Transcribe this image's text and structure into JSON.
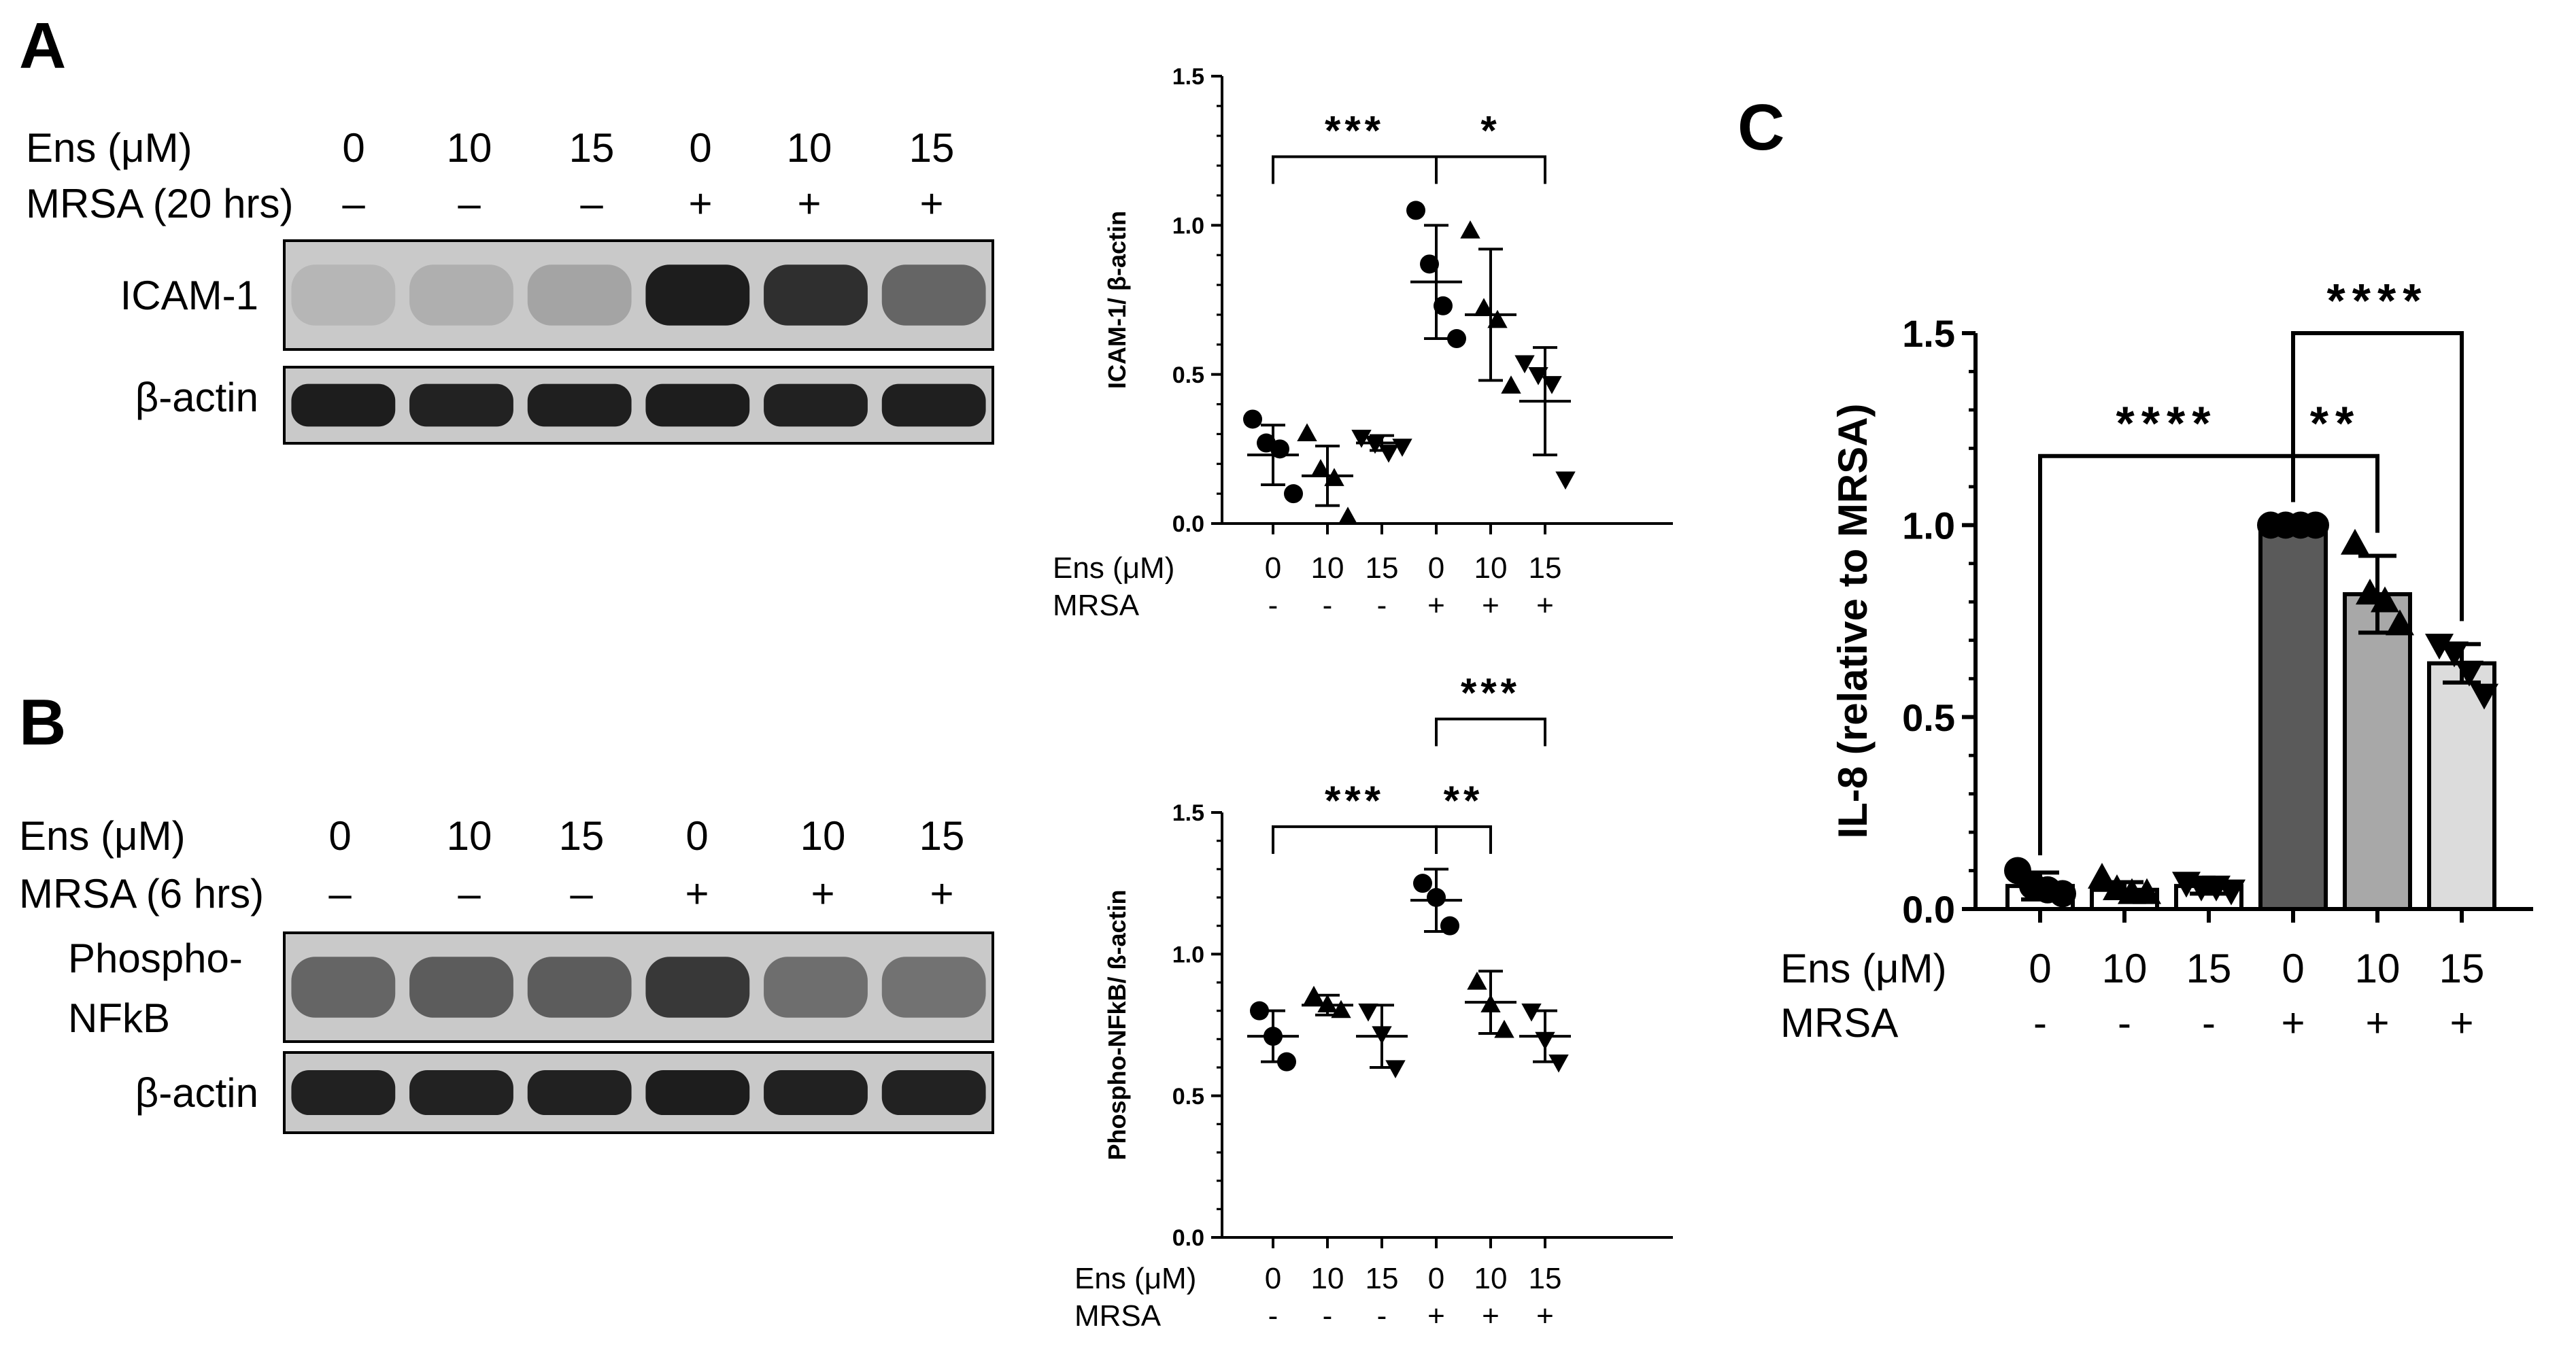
{
  "panels": {
    "A": {
      "letter": "A",
      "rows": [
        {
          "label": "Ens (μM)",
          "values": [
            "0",
            "10",
            "15",
            "0",
            "10",
            "15"
          ]
        },
        {
          "label": "MRSA (20 hrs)",
          "values": [
            "–",
            "–",
            "–",
            "+",
            "+",
            "+"
          ]
        }
      ],
      "blots": [
        {
          "label": "ICAM-1",
          "intensity": [
            0.1,
            0.14,
            0.2,
            0.95,
            0.85,
            0.55
          ]
        },
        {
          "label": "β-actin",
          "intensity": [
            0.95,
            0.92,
            0.94,
            0.95,
            0.93,
            0.94
          ]
        }
      ]
    },
    "B": {
      "letter": "B",
      "rows": [
        {
          "label": "Ens (μM)",
          "values": [
            "0",
            "10",
            "15",
            "0",
            "10",
            "15"
          ]
        },
        {
          "label": "MRSA (6 hrs)",
          "values": [
            "–",
            "–",
            "–",
            "+",
            "+",
            "+"
          ]
        }
      ],
      "blots": [
        {
          "label_lines": [
            "Phospho-",
            "NFkB"
          ],
          "intensity": [
            0.55,
            0.6,
            0.6,
            0.8,
            0.5,
            0.48
          ]
        },
        {
          "label": "β-actin",
          "intensity": [
            0.93,
            0.92,
            0.93,
            0.95,
            0.93,
            0.92
          ]
        }
      ]
    },
    "C": {
      "letter": "C"
    }
  },
  "chart_data": [
    {
      "id": "icam-chart",
      "type": "scatter",
      "ylabel": "ICAM-1/ β-actin",
      "ylim": [
        0,
        1.5
      ],
      "yticks": [
        "0.0",
        "0.5",
        "1.0",
        "1.5"
      ],
      "categories": [
        "0",
        "10",
        "15",
        "0",
        "10",
        "15"
      ],
      "row_labels": [
        "Ens (μM)",
        "MRSA"
      ],
      "mrsa": [
        "-",
        "-",
        "-",
        "+",
        "+",
        "+"
      ],
      "groups": [
        {
          "marker": "circle",
          "points": [
            0.35,
            0.27,
            0.25,
            0.1
          ],
          "mean": 0.23,
          "sd": 0.1
        },
        {
          "marker": "triangle",
          "points": [
            0.3,
            0.18,
            0.15,
            0.02
          ],
          "mean": 0.16,
          "sd": 0.1
        },
        {
          "marker": "triangle-down",
          "points": [
            0.29,
            0.27,
            0.24,
            0.26
          ],
          "mean": 0.27,
          "sd": 0.025
        },
        {
          "marker": "circle",
          "points": [
            1.05,
            0.87,
            0.73,
            0.62
          ],
          "mean": 0.81,
          "sd": 0.19
        },
        {
          "marker": "triangle",
          "points": [
            0.98,
            0.72,
            0.68,
            0.46
          ],
          "mean": 0.7,
          "sd": 0.22
        },
        {
          "marker": "triangle-down",
          "points": [
            0.54,
            0.5,
            0.47,
            0.15
          ],
          "mean": 0.41,
          "sd": 0.18
        }
      ],
      "significance": [
        {
          "from": 0,
          "to": 3,
          "label": "***",
          "level": 1.23
        },
        {
          "from": 3,
          "to": 5,
          "label": "*",
          "level": 1.23
        }
      ]
    },
    {
      "id": "nfkb-chart",
      "type": "scatter",
      "ylabel": "Phospho-NFkB/ ß-actin",
      "ylim": [
        0,
        1.5
      ],
      "yticks": [
        "0.0",
        "0.5",
        "1.0",
        "1.5"
      ],
      "categories": [
        "0",
        "10",
        "15",
        "0",
        "10",
        "15"
      ],
      "row_labels": [
        "Ens (μM)",
        "MRSA"
      ],
      "mrsa": [
        "-",
        "-",
        "-",
        "+",
        "+",
        "+"
      ],
      "groups": [
        {
          "marker": "circle",
          "points": [
            0.8,
            0.71,
            0.62
          ],
          "mean": 0.71,
          "sd": 0.09
        },
        {
          "marker": "triangle",
          "points": [
            0.85,
            0.82,
            0.8
          ],
          "mean": 0.82,
          "sd": 0.035
        },
        {
          "marker": "triangle-down",
          "points": [
            0.8,
            0.72,
            0.6
          ],
          "mean": 0.71,
          "sd": 0.11
        },
        {
          "marker": "circle",
          "points": [
            1.25,
            1.2,
            1.1
          ],
          "mean": 1.19,
          "sd": 0.11
        },
        {
          "marker": "triangle",
          "points": [
            0.9,
            0.82,
            0.73
          ],
          "mean": 0.83,
          "sd": 0.11
        },
        {
          "marker": "triangle-down",
          "points": [
            0.8,
            0.7,
            0.62
          ],
          "mean": 0.71,
          "sd": 0.09
        }
      ],
      "significance": [
        {
          "from": 0,
          "to": 3,
          "label": "***",
          "level": 1.45
        },
        {
          "from": 3,
          "to": 4,
          "label": "**",
          "level": 1.45
        },
        {
          "from": 3,
          "to": 5,
          "label": "***",
          "level": 1.83
        }
      ]
    },
    {
      "id": "il8-chart",
      "type": "bar",
      "ylabel": "IL-8 (relative to MRSA)",
      "ylim": [
        0,
        1.5
      ],
      "yticks": [
        "0.0",
        "0.5",
        "1.0",
        "1.5"
      ],
      "categories": [
        "0",
        "10",
        "15",
        "0",
        "10",
        "15"
      ],
      "row_labels": [
        "Ens (μM)",
        "MRSA"
      ],
      "mrsa": [
        "-",
        "-",
        "-",
        "+",
        "+",
        "+"
      ],
      "bar_colors": [
        "#ffffff",
        "#ffffff",
        "#ffffff",
        "#5a5a5a",
        "#a8a8a8",
        "#dcdcdc"
      ],
      "values": [
        0.06,
        0.05,
        0.06,
        1.0,
        0.82,
        0.64
      ],
      "sd": [
        0.035,
        0.02,
        0.02,
        0.0,
        0.1,
        0.05
      ],
      "groups": [
        {
          "marker": "circle",
          "points": [
            0.1,
            0.06,
            0.05,
            0.04
          ]
        },
        {
          "marker": "triangle",
          "points": [
            0.08,
            0.05,
            0.04,
            0.04
          ]
        },
        {
          "marker": "triangle-down",
          "points": [
            0.07,
            0.06,
            0.06,
            0.05
          ]
        },
        {
          "marker": "circle",
          "points": [
            1.0,
            1.0,
            1.0,
            1.0
          ]
        },
        {
          "marker": "triangle",
          "points": [
            0.95,
            0.82,
            0.8,
            0.74
          ]
        },
        {
          "marker": "triangle-down",
          "points": [
            0.69,
            0.67,
            0.62,
            0.56
          ]
        }
      ],
      "significance": [
        {
          "from": 0,
          "to": 3,
          "label": "****",
          "level": 1.18
        },
        {
          "from": 3,
          "to": 4,
          "label": "**",
          "level": 1.18
        },
        {
          "from": 3,
          "to": 5,
          "label": "****",
          "level": 1.5
        }
      ]
    }
  ]
}
